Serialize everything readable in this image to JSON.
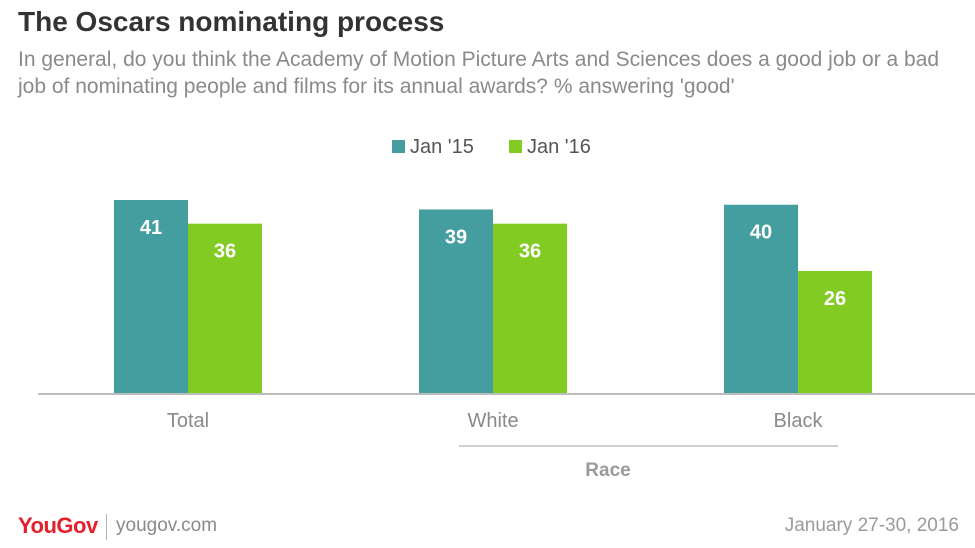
{
  "header": {
    "title": "The Oscars nominating process",
    "subtitle": "In general, do you think the Academy of Motion Picture Arts and Sciences does a good job or a bad job of nominating people and films for its annual awards? % answering 'good'"
  },
  "chart_data": {
    "type": "bar",
    "categories": [
      "Total",
      "White",
      "Black"
    ],
    "series": [
      {
        "name": "Jan '15",
        "values": [
          41,
          39,
          40
        ],
        "color": "#449e9f"
      },
      {
        "name": "Jan '16",
        "values": [
          36,
          36,
          26
        ],
        "color": "#82cb23"
      }
    ],
    "group_label": "Race",
    "group_label_covers": [
      "White",
      "Black"
    ],
    "ylim": [
      0,
      41
    ],
    "legend_position": "top-center",
    "data_labels": true,
    "label_color": "#ffffff",
    "grid": false
  },
  "footer": {
    "logo": "YouGov",
    "site": "yougov.com",
    "date": "January 27-30, 2016"
  }
}
